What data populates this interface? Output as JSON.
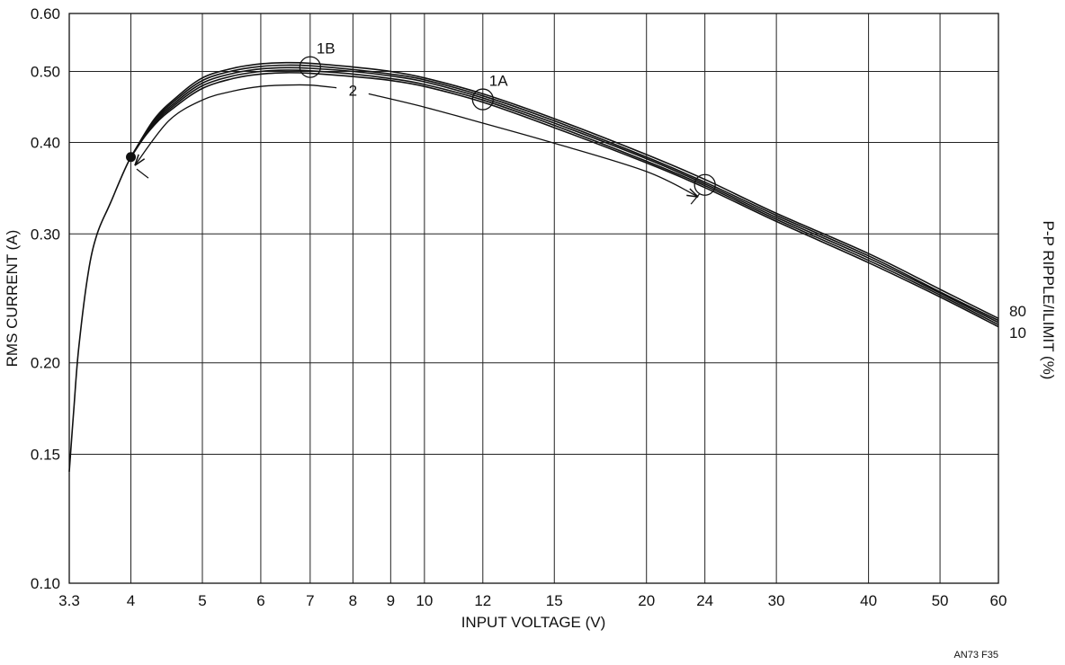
{
  "chart_data": {
    "type": "line",
    "x_scale": "log",
    "y_scale": "log",
    "xlim": [
      3.3,
      60
    ],
    "ylim": [
      0.1,
      0.6
    ],
    "xlabel": "INPUT VOLTAGE (V)",
    "ylabel": "RMS CURRENT (A)",
    "right_label": "P-P RIPPLE/ILIMIT (%)",
    "figure_note": "AN73 F35",
    "grid": true,
    "x_ticks": [
      {
        "value": 3.3,
        "label": "3.3"
      },
      {
        "value": 4,
        "label": "4"
      },
      {
        "value": 5,
        "label": "5"
      },
      {
        "value": 6,
        "label": "6"
      },
      {
        "value": 7,
        "label": "7"
      },
      {
        "value": 8,
        "label": "8"
      },
      {
        "value": 9,
        "label": "9"
      },
      {
        "value": 10,
        "label": "10"
      },
      {
        "value": 12,
        "label": "12"
      },
      {
        "value": 15,
        "label": "15"
      },
      {
        "value": 20,
        "label": "20"
      },
      {
        "value": 24,
        "label": "24"
      },
      {
        "value": 30,
        "label": "30"
      },
      {
        "value": 40,
        "label": "40"
      },
      {
        "value": 50,
        "label": "50"
      },
      {
        "value": 60,
        "label": "60"
      }
    ],
    "y_ticks": [
      {
        "value": 0.1,
        "label": "0.10"
      },
      {
        "value": 0.15,
        "label": "0.15"
      },
      {
        "value": 0.2,
        "label": "0.20"
      },
      {
        "value": 0.3,
        "label": "0.30"
      },
      {
        "value": 0.4,
        "label": "0.40"
      },
      {
        "value": 0.5,
        "label": "0.50"
      },
      {
        "value": 0.6,
        "label": "0.60"
      }
    ],
    "series_end_labels": [
      "80",
      "10"
    ],
    "series": [
      {
        "name": "80",
        "points": [
          [
            4,
            0.382
          ],
          [
            4.3,
            0.43
          ],
          [
            4.6,
            0.46
          ],
          [
            5,
            0.49
          ],
          [
            5.5,
            0.505
          ],
          [
            6,
            0.512
          ],
          [
            6.5,
            0.514
          ],
          [
            7,
            0.513
          ],
          [
            8,
            0.507
          ],
          [
            9,
            0.5
          ],
          [
            10,
            0.49
          ],
          [
            12,
            0.466
          ],
          [
            15,
            0.431
          ],
          [
            20,
            0.385
          ],
          [
            24,
            0.356
          ],
          [
            30,
            0.32
          ],
          [
            40,
            0.282
          ],
          [
            50,
            0.252
          ],
          [
            60,
            0.23
          ]
        ]
      },
      {
        "name": "",
        "points": [
          [
            4,
            0.382
          ],
          [
            4.3,
            0.428
          ],
          [
            4.6,
            0.457
          ],
          [
            5,
            0.486
          ],
          [
            5.5,
            0.501
          ],
          [
            6,
            0.508
          ],
          [
            6.5,
            0.51
          ],
          [
            7,
            0.509
          ],
          [
            8,
            0.503
          ],
          [
            9,
            0.496
          ],
          [
            10,
            0.487
          ],
          [
            12,
            0.463
          ],
          [
            15,
            0.428
          ],
          [
            20,
            0.382
          ],
          [
            24,
            0.353
          ],
          [
            30,
            0.318
          ],
          [
            40,
            0.28
          ],
          [
            50,
            0.25
          ],
          [
            60,
            0.2285
          ]
        ]
      },
      {
        "name": "",
        "points": [
          [
            4,
            0.382
          ],
          [
            4.3,
            0.426
          ],
          [
            4.6,
            0.454
          ],
          [
            5,
            0.482
          ],
          [
            5.5,
            0.497
          ],
          [
            6,
            0.504
          ],
          [
            6.5,
            0.506
          ],
          [
            7,
            0.505
          ],
          [
            8,
            0.5
          ],
          [
            9,
            0.493
          ],
          [
            10,
            0.484
          ],
          [
            12,
            0.46
          ],
          [
            15,
            0.425
          ],
          [
            20,
            0.38
          ],
          [
            24,
            0.351
          ],
          [
            30,
            0.316
          ],
          [
            40,
            0.278
          ],
          [
            50,
            0.249
          ],
          [
            60,
            0.227
          ]
        ]
      },
      {
        "name": "",
        "points": [
          [
            4,
            0.382
          ],
          [
            4.3,
            0.424
          ],
          [
            4.6,
            0.451
          ],
          [
            5,
            0.478
          ],
          [
            5.5,
            0.493
          ],
          [
            6,
            0.5
          ],
          [
            6.5,
            0.502
          ],
          [
            7,
            0.501
          ],
          [
            8,
            0.496
          ],
          [
            9,
            0.489
          ],
          [
            10,
            0.48
          ],
          [
            12,
            0.457
          ],
          [
            15,
            0.422
          ],
          [
            20,
            0.377
          ],
          [
            24,
            0.349
          ],
          [
            30,
            0.314
          ],
          [
            40,
            0.276
          ],
          [
            50,
            0.2475
          ],
          [
            60,
            0.2255
          ]
        ]
      },
      {
        "name": "10",
        "points": [
          [
            3.3,
            0.142
          ],
          [
            3.35,
            0.175
          ],
          [
            3.4,
            0.21
          ],
          [
            3.5,
            0.265
          ],
          [
            3.6,
            0.3
          ],
          [
            3.75,
            0.33
          ],
          [
            4,
            0.382
          ],
          [
            4.3,
            0.422
          ],
          [
            4.6,
            0.448
          ],
          [
            5,
            0.474
          ],
          [
            5.5,
            0.489
          ],
          [
            6,
            0.496
          ],
          [
            6.5,
            0.498
          ],
          [
            7,
            0.497
          ],
          [
            8,
            0.492
          ],
          [
            9,
            0.486
          ],
          [
            10,
            0.477
          ],
          [
            12,
            0.454
          ],
          [
            15,
            0.419
          ],
          [
            20,
            0.375
          ],
          [
            24,
            0.347
          ],
          [
            30,
            0.312
          ],
          [
            40,
            0.274
          ],
          [
            50,
            0.246
          ],
          [
            60,
            0.224
          ]
        ]
      }
    ],
    "inner_curve_2": {
      "label": "2",
      "points": [
        [
          4.05,
          0.372
        ],
        [
          4.5,
          0.428
        ],
        [
          5,
          0.457
        ],
        [
          5.5,
          0.47
        ],
        [
          6,
          0.477
        ],
        [
          6.5,
          0.479
        ],
        [
          7,
          0.479
        ],
        [
          7.6,
          0.475
        ]
      ],
      "tail_points": [
        [
          8.4,
          0.466
        ],
        [
          10,
          0.447
        ],
        [
          12,
          0.425
        ],
        [
          15,
          0.399
        ],
        [
          20,
          0.365
        ],
        [
          23.5,
          0.337
        ]
      ]
    },
    "annotations": [
      {
        "label": "1B",
        "x": 7,
        "y": 0.507,
        "marker": "open-circle"
      },
      {
        "label": "1A",
        "x": 12,
        "y": 0.458,
        "marker": "open-circle"
      },
      {
        "label": "",
        "x": 24,
        "y": 0.35,
        "marker": "open-circle"
      },
      {
        "label": "",
        "x": 4,
        "y": 0.382,
        "marker": "filled-dot"
      }
    ]
  }
}
